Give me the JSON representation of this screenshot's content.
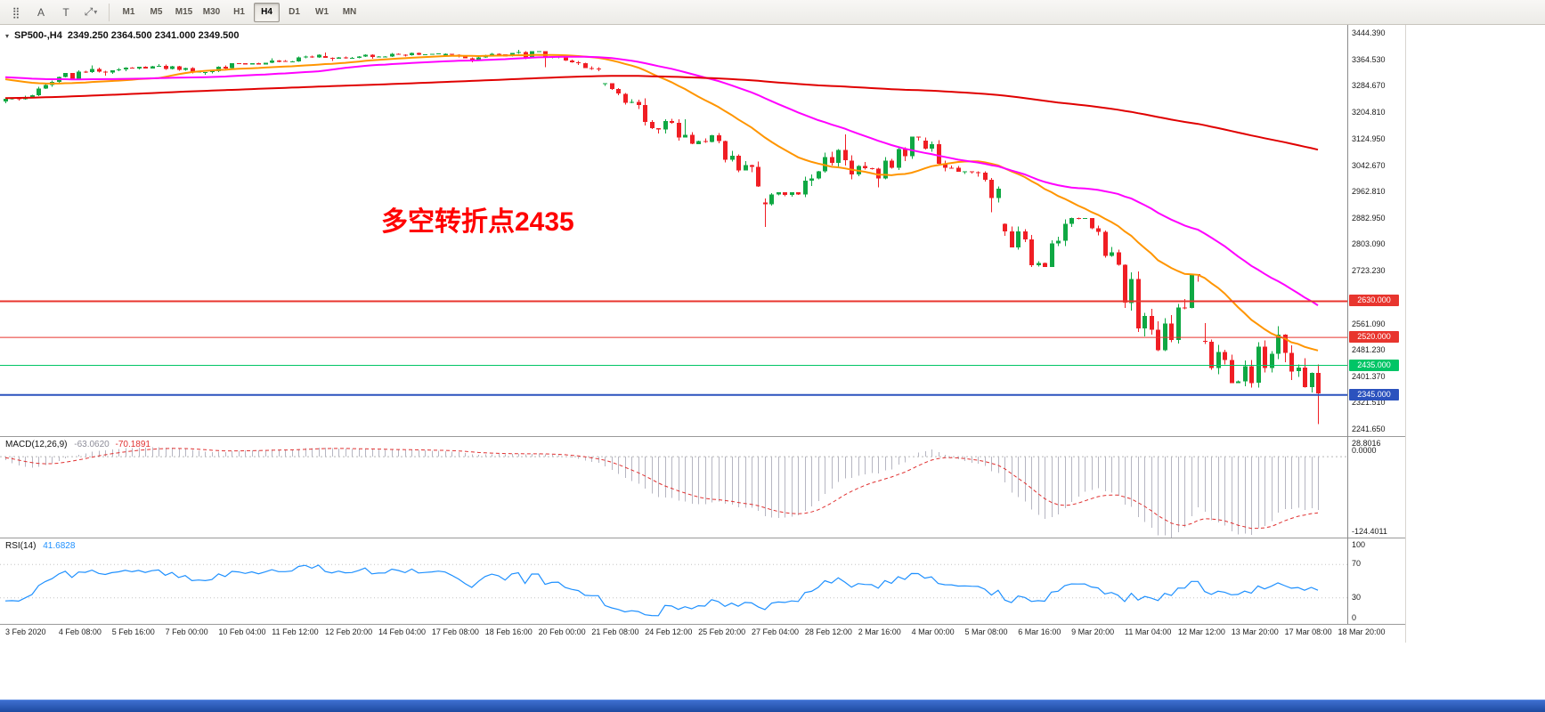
{
  "toolbar": {
    "tools": [
      {
        "name": "dot-grid-tool",
        "glyph": "⣿"
      },
      {
        "name": "text-annotation-tool",
        "glyph": "A"
      },
      {
        "name": "text-label-tool",
        "glyph": "T"
      },
      {
        "name": "shapes-tool",
        "glyph": "⤢"
      }
    ],
    "shapes_caret": "▾",
    "timeframes": [
      "M1",
      "M5",
      "M15",
      "M30",
      "H1",
      "H4",
      "D1",
      "W1",
      "MN"
    ],
    "active_timeframe": "H4"
  },
  "main_chart": {
    "collapse_icon": "▾",
    "symbol_title": "SP500-,H4",
    "ohlc_text": "2349.250 2364.500 2341.000 2349.500",
    "annotation": "多空转折点2435",
    "annotation_color": "#ff0000",
    "y_ticks": [
      "3444.390",
      "3364.530",
      "3284.670",
      "3204.810",
      "3124.950",
      "3042.670",
      "2962.810",
      "2882.950",
      "2803.090",
      "2723.230",
      "2561.090",
      "2481.230",
      "2401.370",
      "2321.510",
      "2241.650"
    ],
    "hlines": [
      {
        "label": "2630.000",
        "price": 2630,
        "color": "#e8352e",
        "width": 2
      },
      {
        "label": "2520.000",
        "price": 2520,
        "color": "#e8352e",
        "width": 1
      },
      {
        "label": "2435.000",
        "price": 2435,
        "color": "#00c566",
        "width": 1
      },
      {
        "label": "2345.000",
        "price": 2345,
        "color": "#2b52be",
        "width": 2
      }
    ]
  },
  "macd": {
    "label": "MACD(12,26,9)",
    "main_value": "-63.0620",
    "signal_value": "-70.1891",
    "axis_top": "28.8016",
    "axis_zero": "0.0000",
    "axis_bottom": "-124.4011"
  },
  "rsi": {
    "label": "RSI(14)",
    "value": "41.6828",
    "axis": [
      "100",
      "70",
      "30",
      "0"
    ]
  },
  "time_axis": [
    "3 Feb 2020",
    "4 Feb 08:00",
    "5 Feb 16:00",
    "7 Feb 00:00",
    "10 Feb 04:00",
    "11 Feb 12:00",
    "12 Feb 20:00",
    "14 Feb 04:00",
    "17 Feb 08:00",
    "18 Feb 16:00",
    "20 Feb 00:00",
    "21 Feb 08:00",
    "24 Feb 12:00",
    "25 Feb 20:00",
    "27 Feb 04:00",
    "28 Feb 12:00",
    "2 Mar 16:00",
    "4 Mar 00:00",
    "5 Mar 08:00",
    "6 Mar 16:00",
    "9 Mar 20:00",
    "11 Mar 04:00",
    "12 Mar 12:00",
    "13 Mar 20:00",
    "17 Mar 08:00",
    "18 Mar 20:00"
  ],
  "chart_data": {
    "type": "candlestick",
    "symbol": "SP500-",
    "timeframe": "H4",
    "current_close": 2349.5,
    "ylim": [
      2220,
      3470
    ],
    "bars_per_day": 6,
    "levels": [
      2630,
      2520,
      2435,
      2345
    ],
    "colors": {
      "up": "#0fa843",
      "down": "#f01e24"
    },
    "ma": [
      {
        "name": "MA-fast",
        "color": "#ff9500",
        "period": 24,
        "width": 2
      },
      {
        "name": "MA-mid",
        "color": "#ff00ff",
        "period": 48,
        "width": 2
      },
      {
        "name": "MA-slow",
        "color": "#e00000",
        "period": 200,
        "width": 2
      }
    ],
    "indicators": {
      "macd": [
        12,
        26,
        9
      ],
      "rsi": 14
    },
    "macd_range": [
      -124.4011,
      28.8016
    ],
    "rsi_levels": [
      70,
      30
    ],
    "days": [
      {
        "date": "3 Feb",
        "ohlc": [
          3237,
          3282,
          3232,
          3277
        ]
      },
      {
        "date": "4 Feb",
        "ohlc": [
          3277,
          3332,
          3275,
          3328
        ]
      },
      {
        "date": "5 Feb",
        "ohlc": [
          3328,
          3347,
          3316,
          3335
        ]
      },
      {
        "date": "6 Feb",
        "ohlc": [
          3335,
          3351,
          3329,
          3346
        ]
      },
      {
        "date": "7 Feb",
        "ohlc": [
          3346,
          3349,
          3322,
          3328
        ]
      },
      {
        "date": "10 Feb",
        "ohlc": [
          3326,
          3353,
          3318,
          3352
        ]
      },
      {
        "date": "11 Feb",
        "ohlc": [
          3353,
          3369,
          3349,
          3358
        ]
      },
      {
        "date": "12 Feb",
        "ohlc": [
          3360,
          3381,
          3358,
          3379
        ]
      },
      {
        "date": "13 Feb",
        "ohlc": [
          3375,
          3386,
          3361,
          3374
        ]
      },
      {
        "date": "14 Feb",
        "ohlc": [
          3374,
          3385,
          3367,
          3380
        ]
      },
      {
        "date": "17 Feb",
        "ohlc": [
          3380,
          3386,
          3374,
          3383
        ]
      },
      {
        "date": "18 Feb",
        "ohlc": [
          3376,
          3384,
          3356,
          3371
        ]
      },
      {
        "date": "19 Feb",
        "ohlc": [
          3371,
          3394,
          3370,
          3387
        ]
      },
      {
        "date": "20 Feb",
        "ohlc": [
          3387,
          3390,
          3342,
          3374
        ]
      },
      {
        "date": "21 Feb",
        "ohlc": [
          3374,
          3376,
          3329,
          3338
        ]
      },
      {
        "date": "24 Feb",
        "ohlc": [
          3292,
          3293,
          3214,
          3226
        ]
      },
      {
        "date": "25 Feb",
        "ohlc": [
          3226,
          3247,
          3118,
          3128
        ]
      },
      {
        "date": "26 Feb",
        "ohlc": [
          3128,
          3183,
          3108,
          3117
        ]
      },
      {
        "date": "27 Feb",
        "ohlc": [
          3117,
          3118,
          2977,
          2979
        ]
      },
      {
        "date": "28 Feb",
        "ohlc": [
          2930,
          2961,
          2856,
          2954
        ]
      },
      {
        "date": "2 Mar",
        "ohlc": [
          2954,
          3092,
          2946,
          3090
        ]
      },
      {
        "date": "3 Mar",
        "ohlc": [
          3090,
          3137,
          2976,
          3003
        ]
      },
      {
        "date": "4 Mar",
        "ohlc": [
          3003,
          3131,
          3001,
          3130
        ]
      },
      {
        "date": "5 Mar",
        "ohlc": [
          3118,
          3128,
          3024,
          3024
        ]
      },
      {
        "date": "6 Mar",
        "ohlc": [
          3024,
          3025,
          2901,
          2972
        ]
      },
      {
        "date": "9 Mar",
        "ohlc": [
          2865,
          2866,
          2734,
          2746
        ]
      },
      {
        "date": "10 Mar",
        "ohlc": [
          2746,
          2884,
          2734,
          2882
        ]
      },
      {
        "date": "11 Mar",
        "ohlc": [
          2882,
          2883,
          2738,
          2741
        ]
      },
      {
        "date": "12 Mar",
        "ohlc": [
          2741,
          2742,
          2478,
          2481
        ]
      },
      {
        "date": "13 Mar",
        "ohlc": [
          2481,
          2712,
          2478,
          2711
        ]
      },
      {
        "date": "16 Mar",
        "ohlc": [
          2510,
          2563,
          2381,
          2386
        ]
      },
      {
        "date": "17 Mar",
        "ohlc": [
          2386,
          2554,
          2368,
          2529
        ]
      },
      {
        "date": "18 Mar",
        "ohlc": [
          2529,
          2530,
          2256,
          2349.5
        ]
      }
    ]
  }
}
